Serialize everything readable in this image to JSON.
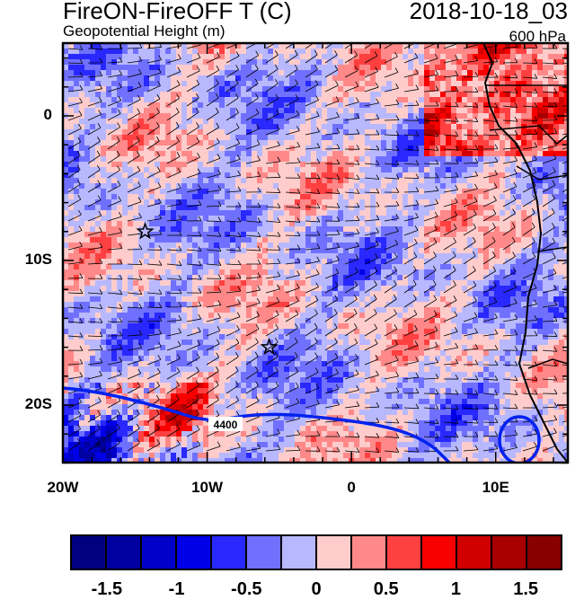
{
  "header": {
    "title": "FireON-FireOFF T (C)",
    "datetime": "2018-10-18_03",
    "subtitle": "Geopotential Height (m)",
    "level": "600 hPa"
  },
  "map": {
    "lon_range": [
      -20,
      15
    ],
    "lat_range": [
      -24,
      5
    ],
    "lon_ticks": [
      {
        "value": -20,
        "label": "20W"
      },
      {
        "value": -10,
        "label": "10W"
      },
      {
        "value": 0,
        "label": "0"
      },
      {
        "value": 10,
        "label": "10E"
      }
    ],
    "lat_ticks": [
      {
        "value": 0,
        "label": "0"
      },
      {
        "value": -10,
        "label": "10S"
      },
      {
        "value": -20,
        "label": "20S"
      }
    ],
    "contour_label": "4400",
    "contour_color": "#0022ee",
    "stars": [
      {
        "lon": -14.3,
        "lat": -8.0
      },
      {
        "lon": -5.7,
        "lat": -16.0
      }
    ]
  },
  "colorbar": {
    "colors": [
      "#000080",
      "#0000a0",
      "#0000c8",
      "#0000e8",
      "#2828ff",
      "#7070ff",
      "#b8b8ff",
      "#ffcccc",
      "#ff8888",
      "#ff4040",
      "#f80000",
      "#d00000",
      "#a80000",
      "#880000"
    ],
    "labels": [
      {
        "value": -1.5,
        "text": "-1.5"
      },
      {
        "value": -1,
        "text": "-1"
      },
      {
        "value": -0.5,
        "text": "-0.5"
      },
      {
        "value": 0,
        "text": "0"
      },
      {
        "value": 0.5,
        "text": "0.5"
      },
      {
        "value": 1,
        "text": "1"
      },
      {
        "value": 1.5,
        "text": "1.5"
      }
    ]
  }
}
